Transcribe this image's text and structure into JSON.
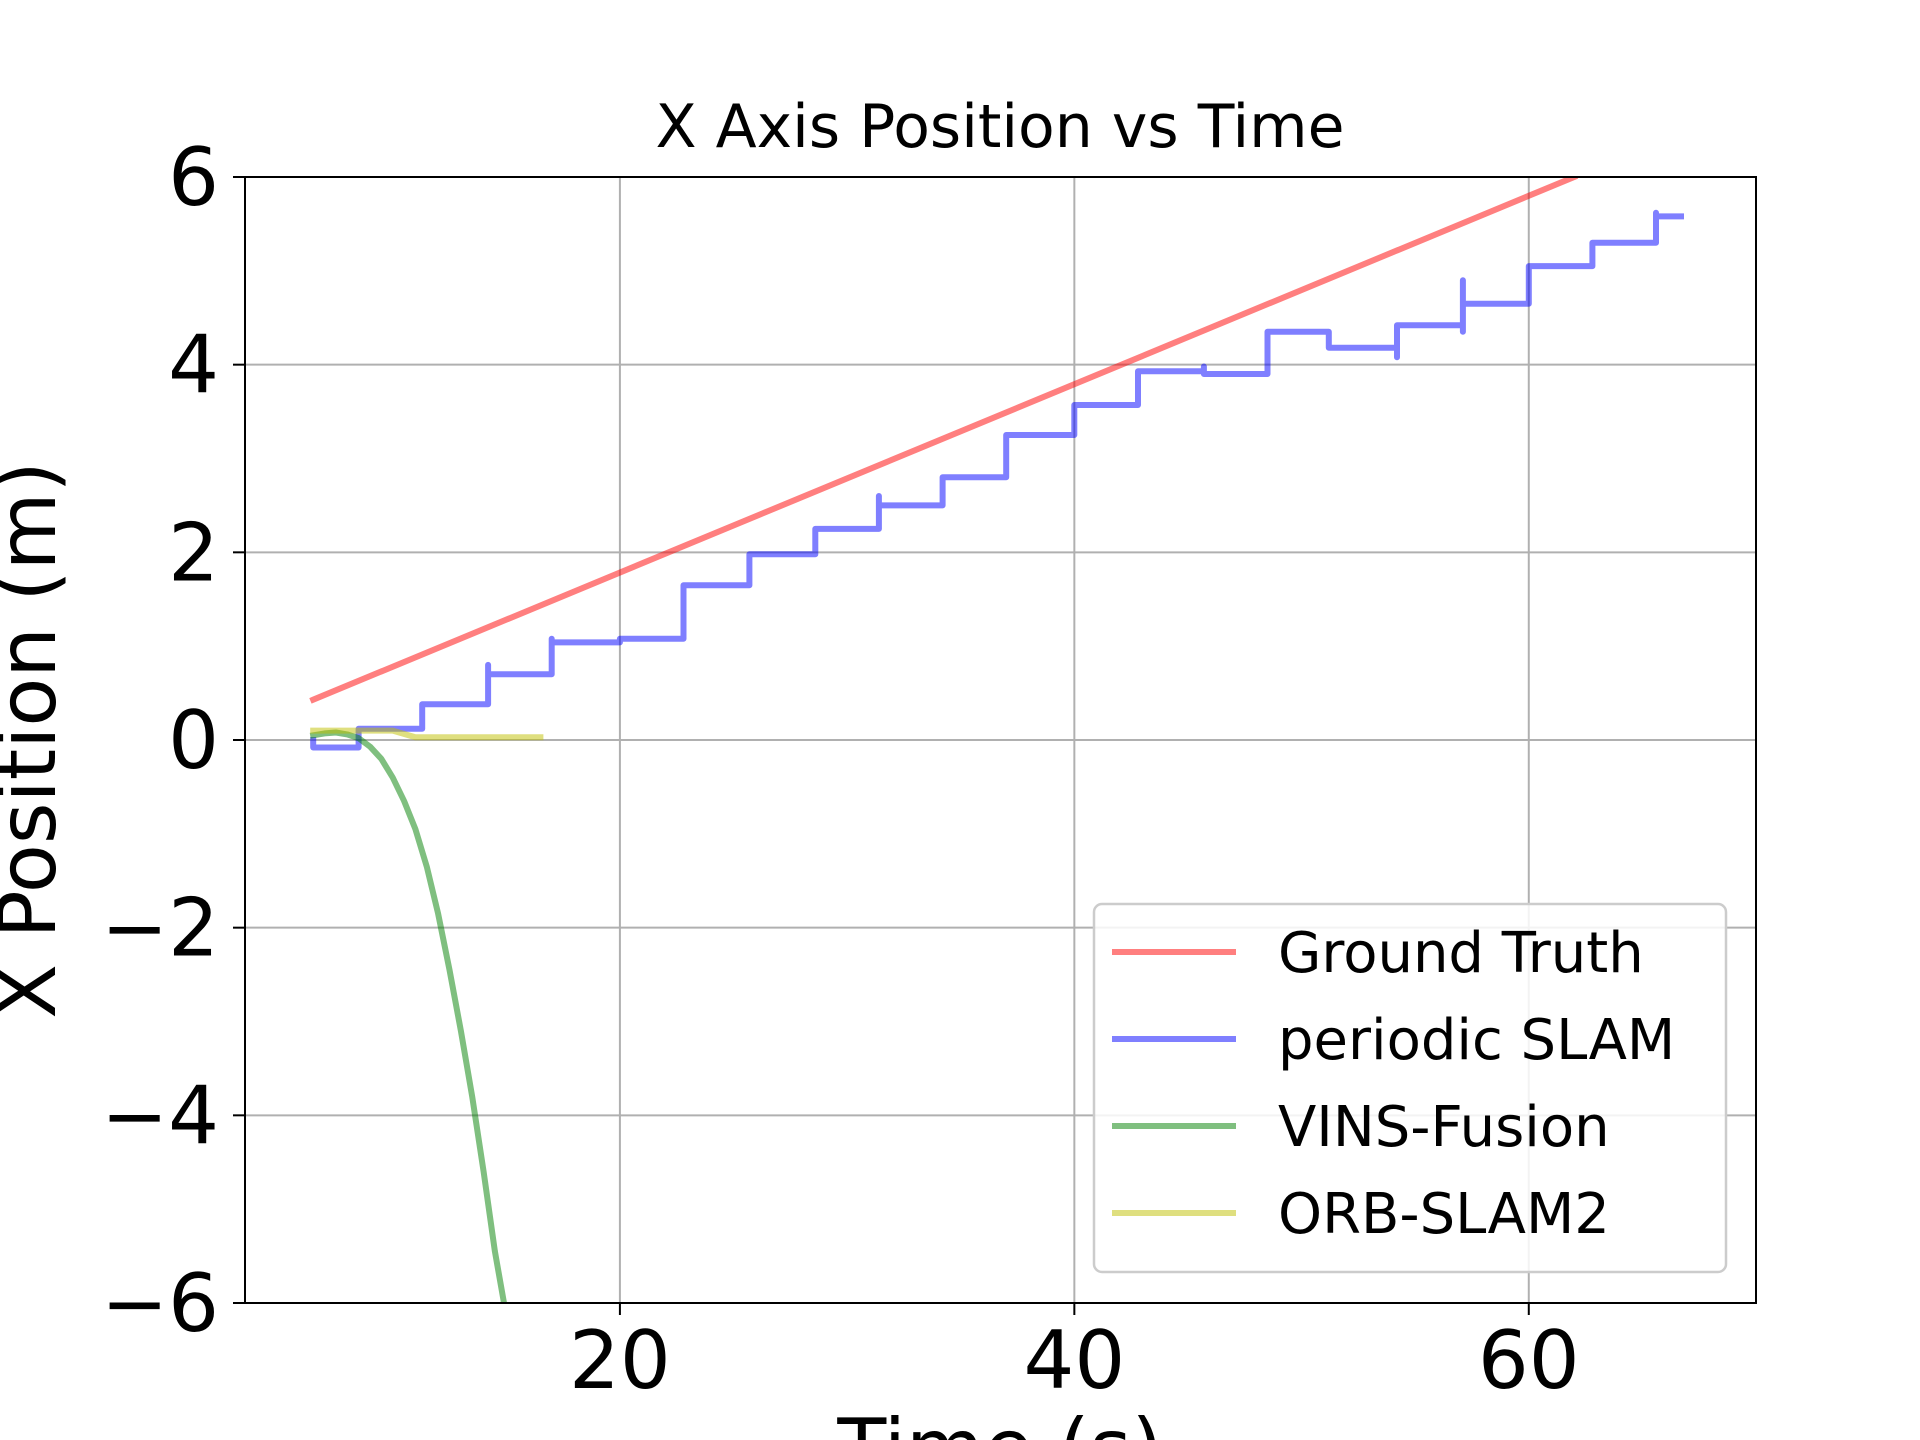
{
  "chart_data": {
    "type": "line",
    "title": "X Axis Position vs Time",
    "xlabel": "Time (s)",
    "ylabel": "X Position (m)",
    "xlim": [
      3.5,
      70
    ],
    "ylim": [
      -6,
      6
    ],
    "xticks": [
      20,
      40,
      60
    ],
    "yticks": [
      6,
      4,
      2,
      0,
      -2,
      -4,
      -6
    ],
    "ytick_labels": [
      "6",
      "4",
      "2",
      "0",
      "−2",
      "−4",
      "−6"
    ],
    "grid": true,
    "legend_position": "lower-right",
    "series": [
      {
        "name": "Ground Truth",
        "color": "#ff0000",
        "opacity": 0.5,
        "points": [
          [
            6.5,
            0.43
          ],
          [
            62.0,
            6.0
          ]
        ]
      },
      {
        "name": "periodic SLAM",
        "color": "#0000ff",
        "opacity": 0.5,
        "points": [
          [
            6.5,
            0.0
          ],
          [
            6.5,
            -0.08
          ],
          [
            8.5,
            -0.08
          ],
          [
            8.5,
            0.12
          ],
          [
            11.3,
            0.12
          ],
          [
            11.3,
            0.38
          ],
          [
            14.2,
            0.38
          ],
          [
            14.2,
            0.8
          ],
          [
            14.2,
            0.7
          ],
          [
            17.0,
            0.7
          ],
          [
            17.0,
            1.08
          ],
          [
            17.0,
            1.04
          ],
          [
            20.0,
            1.04
          ],
          [
            20.0,
            1.08
          ],
          [
            22.8,
            1.08
          ],
          [
            22.8,
            1.65
          ],
          [
            25.7,
            1.65
          ],
          [
            25.7,
            1.98
          ],
          [
            28.6,
            1.98
          ],
          [
            28.6,
            2.25
          ],
          [
            31.4,
            2.25
          ],
          [
            31.4,
            2.6
          ],
          [
            31.4,
            2.5
          ],
          [
            34.2,
            2.5
          ],
          [
            34.2,
            2.8
          ],
          [
            37.0,
            2.8
          ],
          [
            37.0,
            3.25
          ],
          [
            40.0,
            3.25
          ],
          [
            40.0,
            3.57
          ],
          [
            42.8,
            3.57
          ],
          [
            42.8,
            3.93
          ],
          [
            45.7,
            3.93
          ],
          [
            45.7,
            3.98
          ],
          [
            45.7,
            3.9
          ],
          [
            48.5,
            3.9
          ],
          [
            48.5,
            4.35
          ],
          [
            51.2,
            4.35
          ],
          [
            51.2,
            4.18
          ],
          [
            54.2,
            4.18
          ],
          [
            54.2,
            4.08
          ],
          [
            54.2,
            4.42
          ],
          [
            57.1,
            4.42
          ],
          [
            57.1,
            4.35
          ],
          [
            57.1,
            4.9
          ],
          [
            57.1,
            4.65
          ],
          [
            60.0,
            4.65
          ],
          [
            60.0,
            5.05
          ],
          [
            62.8,
            5.05
          ],
          [
            62.8,
            5.3
          ],
          [
            65.6,
            5.3
          ],
          [
            65.6,
            5.62
          ],
          [
            65.6,
            5.58
          ],
          [
            66.7,
            5.58
          ]
        ]
      },
      {
        "name": "VINS-Fusion",
        "color": "#008000",
        "opacity": 0.5,
        "points": [
          [
            6.5,
            0.05
          ],
          [
            7.0,
            0.07
          ],
          [
            7.5,
            0.08
          ],
          [
            8.0,
            0.06
          ],
          [
            8.5,
            0.02
          ],
          [
            9.0,
            -0.07
          ],
          [
            9.5,
            -0.2
          ],
          [
            10.0,
            -0.4
          ],
          [
            10.5,
            -0.65
          ],
          [
            11.0,
            -0.95
          ],
          [
            11.5,
            -1.35
          ],
          [
            12.0,
            -1.85
          ],
          [
            12.5,
            -2.45
          ],
          [
            13.0,
            -3.1
          ],
          [
            13.5,
            -3.8
          ],
          [
            14.0,
            -4.6
          ],
          [
            14.5,
            -5.45
          ],
          [
            14.9,
            -6.0
          ]
        ]
      },
      {
        "name": "ORB-SLAM2",
        "color": "#bfbf00",
        "opacity": 0.5,
        "points": [
          [
            6.5,
            0.1
          ],
          [
            10.0,
            0.1
          ],
          [
            11.0,
            0.03
          ],
          [
            16.5,
            0.03
          ]
        ]
      }
    ]
  }
}
